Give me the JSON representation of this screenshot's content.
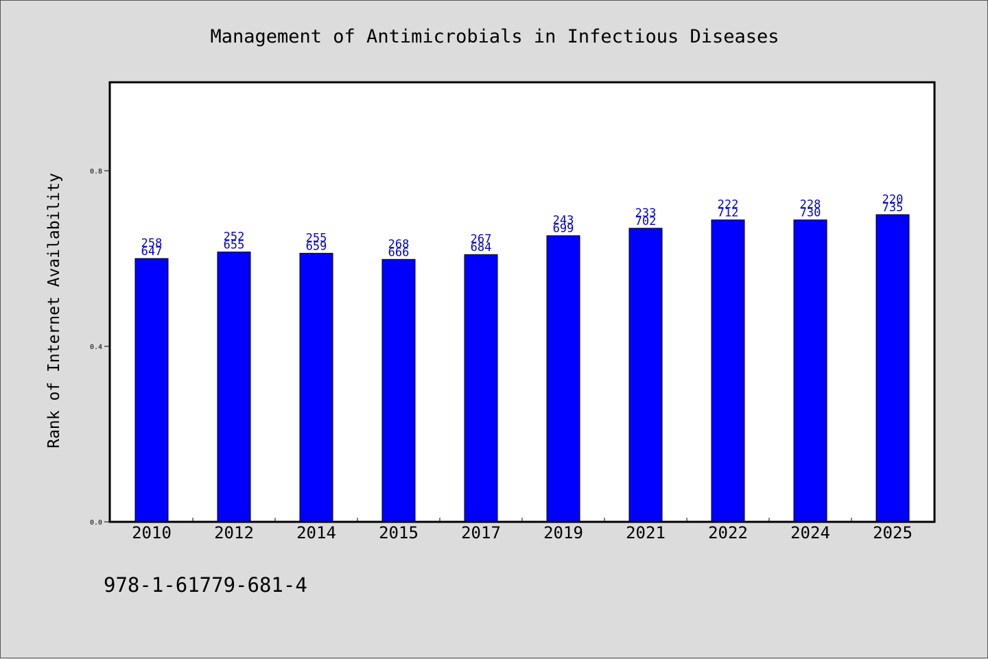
{
  "chart_data": {
    "type": "bar",
    "title": "Management of Antimicrobials in Infectious Diseases",
    "xlabel": "",
    "ylabel": "Rank of Internet Availability",
    "categories": [
      "2010",
      "2012",
      "2014",
      "2015",
      "2017",
      "2019",
      "2021",
      "2022",
      "2024",
      "2025"
    ],
    "values": [
      0.6,
      0.615,
      0.612,
      0.598,
      0.609,
      0.652,
      0.669,
      0.688,
      0.688,
      0.7
    ],
    "labels_top": [
      "258",
      "252",
      "255",
      "268",
      "267",
      "243",
      "233",
      "222",
      "228",
      "220"
    ],
    "labels_bottom": [
      "647",
      "655",
      "659",
      "666",
      "684",
      "699",
      "702",
      "712",
      "730",
      "735"
    ],
    "yticks": [
      "0.0",
      "0.4",
      "0.8"
    ],
    "ytick_values": [
      0.0,
      0.4,
      0.8
    ],
    "ylim": [
      0,
      1.0
    ],
    "bar_color": "#0000ff",
    "label_color": "#0000cc",
    "grid": false,
    "legend": false
  },
  "footer_text": "978-1-61779-681-4"
}
